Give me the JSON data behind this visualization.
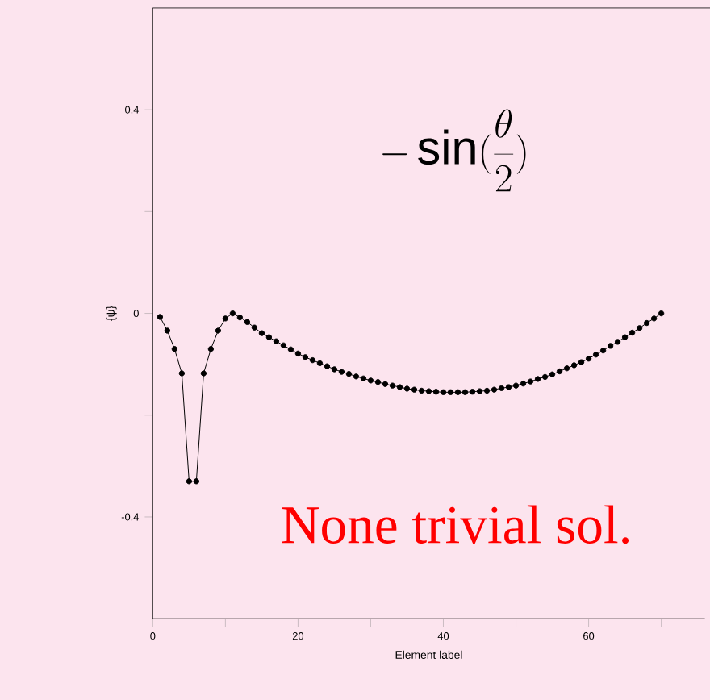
{
  "chart_data": {
    "type": "line",
    "xlabel": "Element label",
    "ylabel": "{ψ}",
    "x": [
      1,
      2,
      3,
      4,
      5,
      6,
      7,
      8,
      9,
      10,
      11,
      12,
      13,
      14,
      15,
      16,
      17,
      18,
      19,
      20,
      21,
      22,
      23,
      24,
      25,
      26,
      27,
      28,
      29,
      30,
      31,
      32,
      33,
      34,
      35,
      36,
      37,
      38,
      39,
      40,
      41,
      42,
      43,
      44,
      45,
      46,
      47,
      48,
      49,
      50,
      51,
      52,
      53,
      54,
      55,
      56,
      57,
      58,
      59,
      60,
      61,
      62,
      63,
      64,
      65,
      66,
      67,
      68,
      69,
      70
    ],
    "series": [
      {
        "color": "#000000",
        "values": [
          -0.007,
          -0.034,
          -0.07,
          -0.118,
          -0.33,
          -0.33,
          -0.118,
          -0.07,
          -0.034,
          -0.01,
          0,
          -0.008,
          -0.017,
          -0.028,
          -0.039,
          -0.047,
          -0.055,
          -0.063,
          -0.071,
          -0.079,
          -0.086,
          -0.092,
          -0.098,
          -0.104,
          -0.11,
          -0.115,
          -0.119,
          -0.124,
          -0.128,
          -0.132,
          -0.135,
          -0.139,
          -0.142,
          -0.145,
          -0.148,
          -0.15,
          -0.152,
          -0.153,
          -0.154,
          -0.155,
          -0.155,
          -0.155,
          -0.155,
          -0.154,
          -0.153,
          -0.152,
          -0.15,
          -0.147,
          -0.145,
          -0.142,
          -0.138,
          -0.134,
          -0.129,
          -0.125,
          -0.12,
          -0.114,
          -0.108,
          -0.102,
          -0.096,
          -0.089,
          -0.081,
          -0.073,
          -0.064,
          -0.056,
          -0.047,
          -0.038,
          -0.029,
          -0.019,
          -0.01,
          0
        ]
      }
    ],
    "xlim": [
      0,
      76
    ],
    "ylim": [
      -0.6,
      0.6
    ],
    "xticks": [
      0,
      {
        "value": 10,
        "label": null
      },
      20,
      {
        "value": 30,
        "label": null
      },
      40,
      {
        "value": 50,
        "label": null
      },
      60,
      {
        "value": 70,
        "label": null
      }
    ],
    "yticks": [
      -0.4,
      {
        "value": -0.2,
        "label": null
      },
      0,
      {
        "value": 0.2,
        "label": null
      },
      0.4
    ],
    "marker": "circle",
    "line_style": "solid",
    "annotations": [
      "-\\sin(\\frac{\\theta}{2})",
      "None trivial sol."
    ]
  }
}
